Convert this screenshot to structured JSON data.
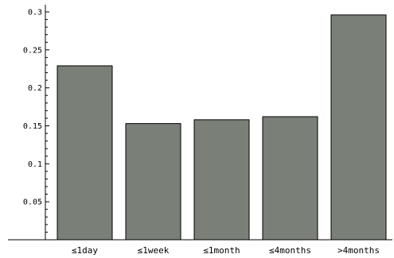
{
  "chart_data": {
    "type": "bar",
    "title": "",
    "xlabel": "",
    "ylabel": "",
    "categories": [
      "≤1day",
      "≤1week",
      "≤1month",
      "≤4months",
      ">4months"
    ],
    "values": [
      0.229,
      0.153,
      0.158,
      0.162,
      0.296
    ],
    "ylim": [
      0,
      0.3
    ],
    "yticks": [
      "0.05",
      "0.1",
      "0.15",
      "0.2",
      "0.25",
      "0.3"
    ],
    "ytick_values": [
      0.05,
      0.1,
      0.15,
      0.2,
      0.25,
      0.3
    ],
    "grid": false,
    "colors": {
      "bar": "#7a7f78",
      "axis": "#000000"
    }
  }
}
